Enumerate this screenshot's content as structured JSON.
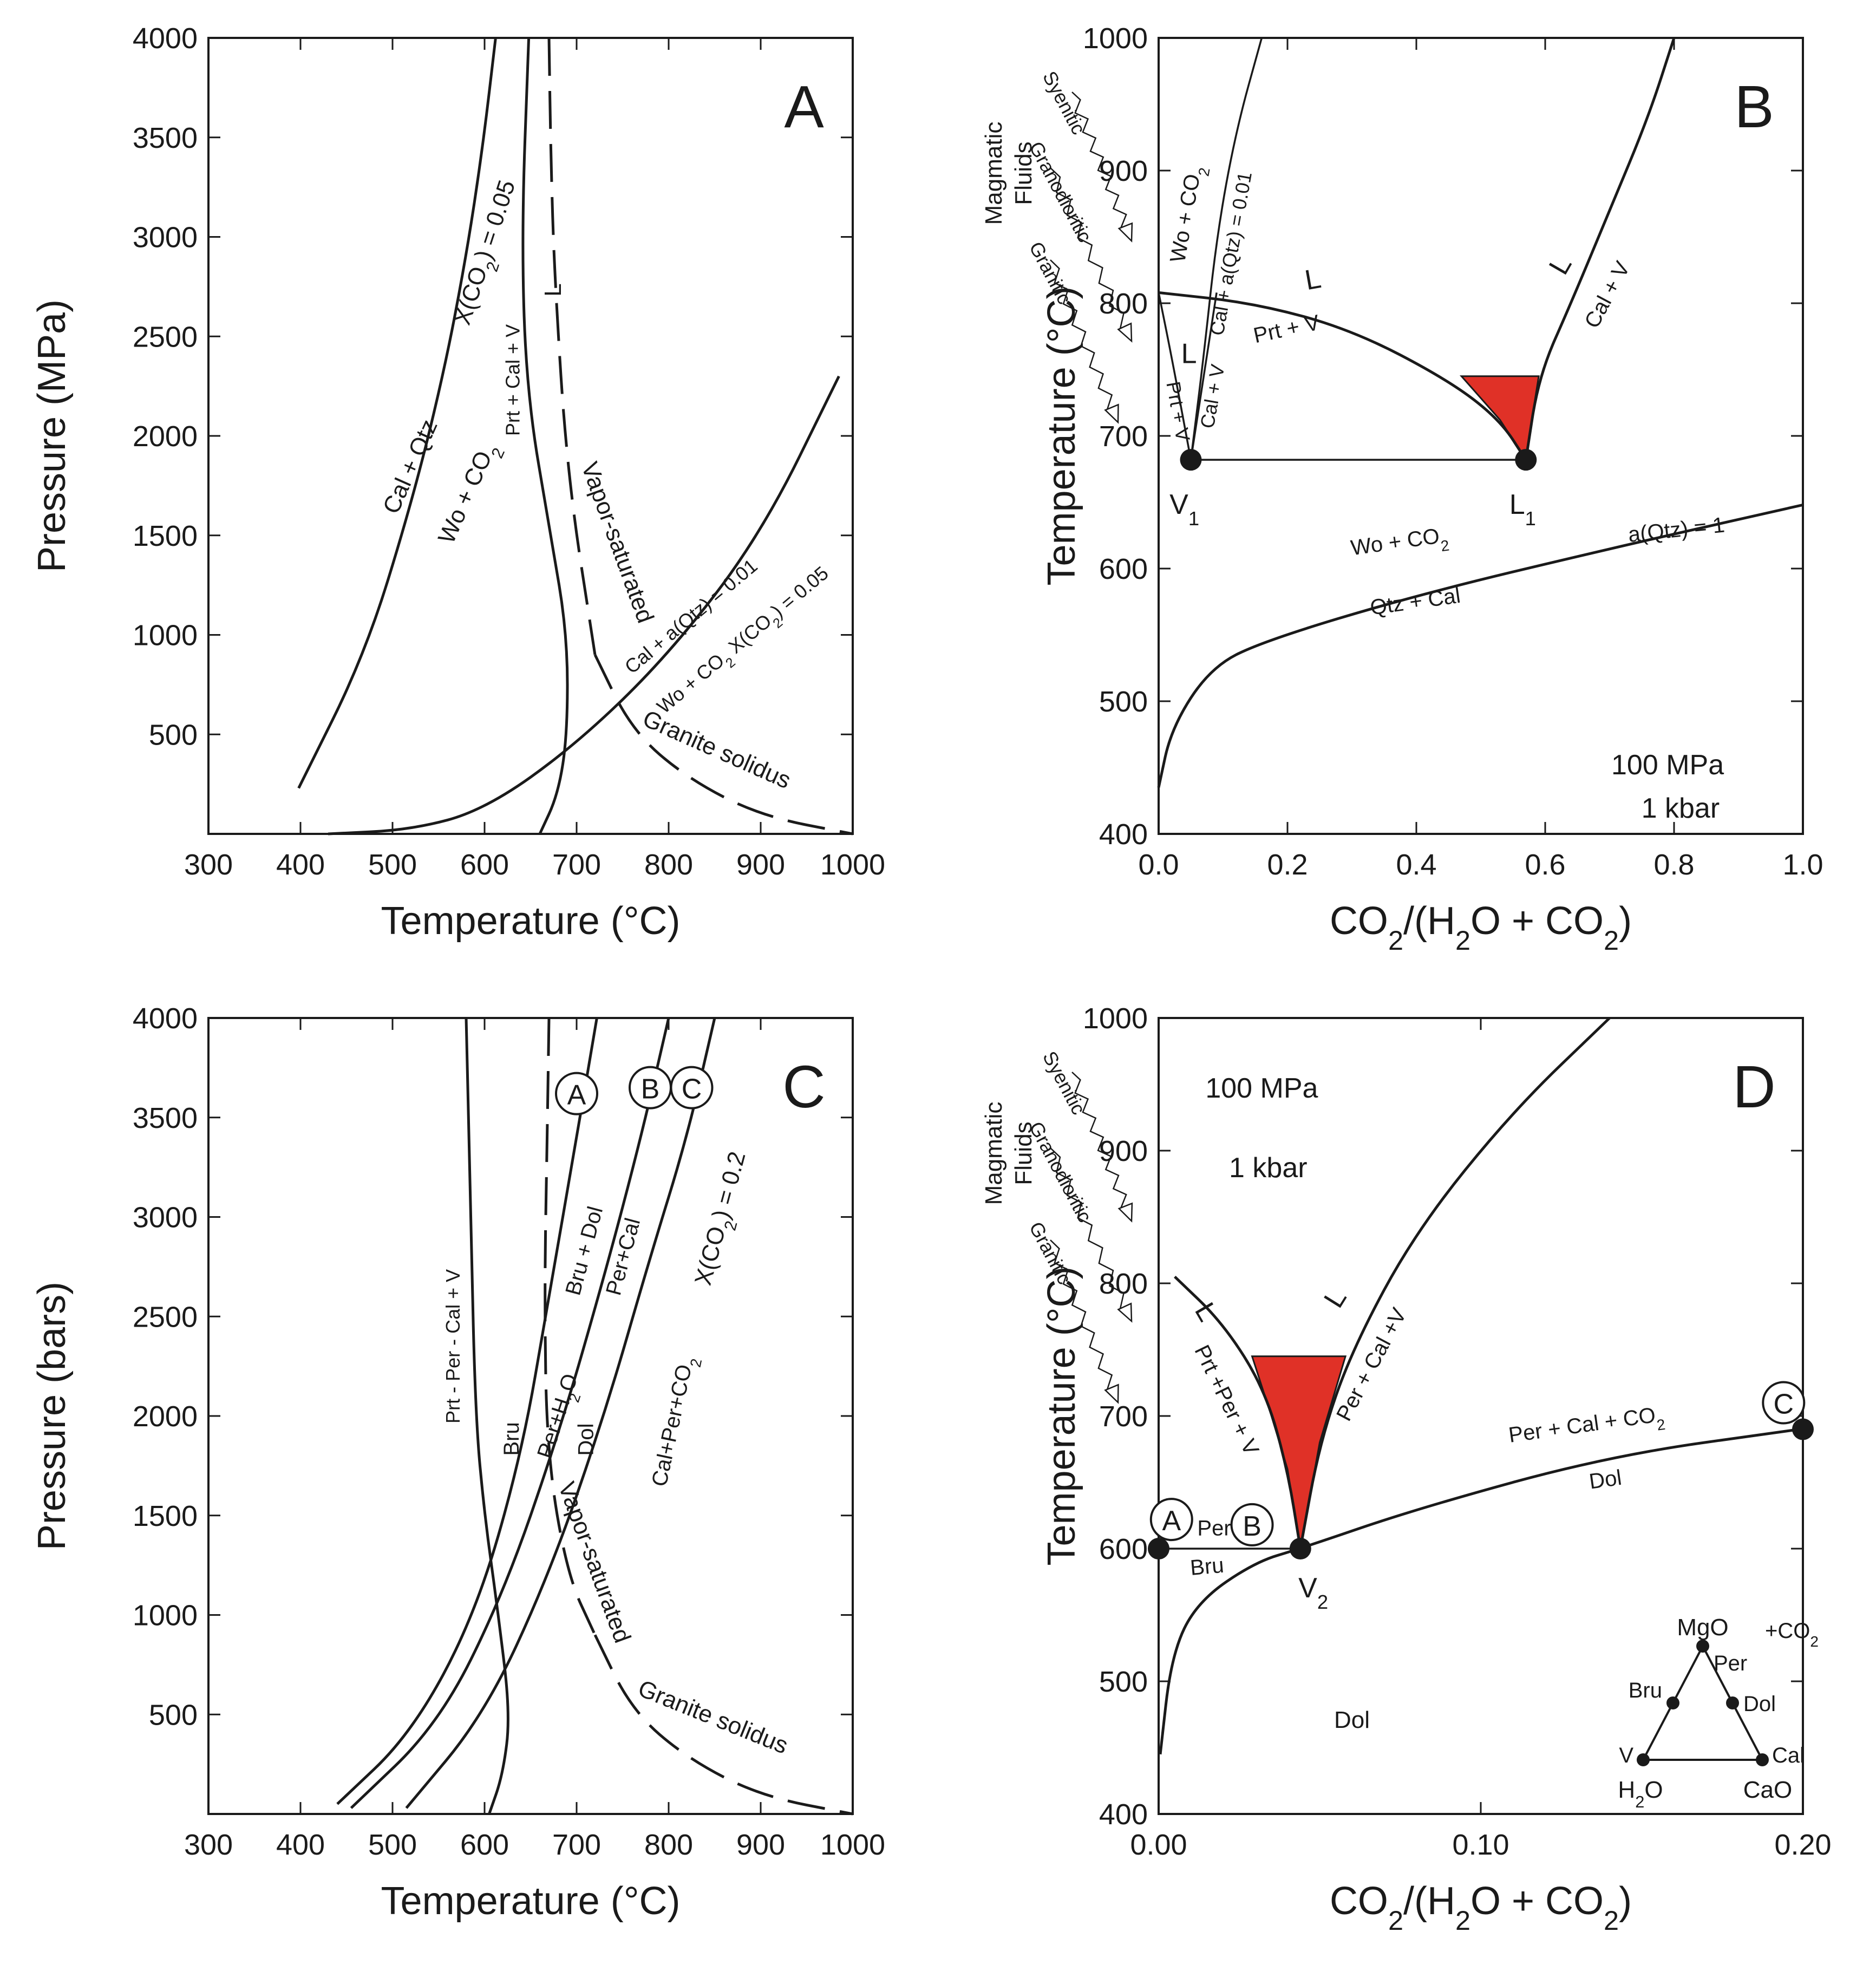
{
  "chart_data": [
    {
      "id": "A",
      "type": "line",
      "panel_label": "A",
      "xlabel": "Temperature (°C)",
      "ylabel": "Pressure (MPa)",
      "xlim": [
        300,
        1000
      ],
      "ylim": [
        0,
        4000
      ],
      "xticks": [
        "300",
        "400",
        "500",
        "600",
        "700",
        "800",
        "900",
        "1000"
      ],
      "yticks": [
        "500",
        "1000",
        "1500",
        "2000",
        "2500",
        "3000",
        "3500",
        "4000"
      ],
      "series": [
        {
          "name": "X(CO2) = 0.05",
          "style": "solid",
          "x": [
            398,
            470,
            520,
            555,
            580,
            598,
            612
          ],
          "y": [
            230,
            900,
            1650,
            2300,
            2900,
            3450,
            4000
          ]
        },
        {
          "name": "Prt + Cal + V",
          "style": "solid",
          "x": [
            648,
            640,
            646,
            672,
            690,
            690,
            680,
            660
          ],
          "y": [
            4000,
            3000,
            2200,
            1500,
            1000,
            500,
            200,
            0
          ]
        },
        {
          "name": "Wo + CO2 X(CO2) = 0.05",
          "style": "solid",
          "x": [
            430,
            520,
            600,
            700,
            800,
            900,
            985
          ],
          "y": [
            0,
            20,
            120,
            450,
            900,
            1500,
            2300
          ]
        },
        {
          "name": "Vapor-saturated L",
          "style": "dashed",
          "x": [
            670,
            672,
            676,
            690,
            720
          ],
          "y": [
            4000,
            3400,
            2800,
            1800,
            900
          ]
        },
        {
          "name": "Granite solidus",
          "style": "dashed",
          "x": [
            720,
            760,
            820,
            900,
            1000
          ],
          "y": [
            900,
            520,
            280,
            90,
            0
          ]
        }
      ],
      "annotations": {
        "cal_qtz": "Cal + Qtz",
        "wo_co2": "Wo + CO2",
        "xco2": "X(CO2) = 0.05",
        "prt_cal_v": "Prt + Cal + V",
        "liquid": "L",
        "vapor_saturated": "Vapor-saturated",
        "cal_aqtz": "Cal + a(Qtz) = 0.01",
        "wo_co2_xco2": "Wo + CO2 X(CO2) = 0.05",
        "granite_solidus": "Granite solidus"
      }
    },
    {
      "id": "B",
      "type": "line",
      "panel_label": "B",
      "xlabel": "CO2/(H2O + CO2)",
      "ylabel": "Temperature (°C)",
      "xlim": [
        0.0,
        1.0
      ],
      "ylim": [
        400,
        1000
      ],
      "xticks": [
        "0.0",
        "0.2",
        "0.4",
        "0.6",
        "0.8",
        "1.0"
      ],
      "yticks": [
        "400",
        "500",
        "600",
        "700",
        "800",
        "900",
        "1000"
      ],
      "side_label": [
        "Magmatic",
        "Fluids"
      ],
      "fluid_arrows": [
        "Syenitic",
        "Granodioritic",
        "Granitic"
      ],
      "series": [
        {
          "name": "Prt + V",
          "style": "solid",
          "x": [
            0.0,
            0.15,
            0.3,
            0.45,
            0.53,
            0.57
          ],
          "y": [
            808,
            800,
            780,
            742,
            712,
            682
          ]
        },
        {
          "name": "Cal + V",
          "style": "solid",
          "x": [
            0.57,
            0.59,
            0.64,
            0.7,
            0.76,
            0.8
          ],
          "y": [
            682,
            745,
            800,
            870,
            940,
            1000
          ]
        },
        {
          "name": "Wo + CO2 / Cal + a(Qtz) = 0.01",
          "style": "solid",
          "x": [
            0.05,
            0.07,
            0.09,
            0.12,
            0.16
          ],
          "y": [
            682,
            760,
            850,
            930,
            1000
          ]
        },
        {
          "name": "L Cal + V (left)",
          "style": "solid",
          "x": [
            0.05,
            0.07,
            0.09
          ],
          "y": [
            682,
            745,
            808
          ]
        },
        {
          "name": "Prt + V (left)",
          "style": "solid",
          "x": [
            0.0,
            0.02,
            0.05
          ],
          "y": [
            808,
            760,
            682
          ]
        },
        {
          "name": "V1-L1 tie line",
          "style": "solid",
          "x": [
            0.05,
            0.57
          ],
          "y": [
            682,
            682
          ]
        },
        {
          "name": "a(Qtz) = 1",
          "style": "solid",
          "x": [
            0.0,
            0.02,
            0.08,
            0.16,
            0.4,
            0.7,
            1.0
          ],
          "y": [
            435,
            480,
            525,
            545,
            580,
            615,
            648
          ]
        }
      ],
      "points": [
        {
          "name": "V1",
          "x": 0.05,
          "y": 682
        },
        {
          "name": "L1",
          "x": 0.57,
          "y": 682
        }
      ],
      "annotations": {
        "L_top": "L",
        "prt_v": "Prt + V",
        "L_right": "L",
        "cal_v_right": "Cal + V",
        "L_left": "L",
        "cal_v_left": "Cal + V",
        "prt_v_left": "Prt + V",
        "wo_co2": "Wo + CO2",
        "cal_aqtz": "Cal + a(Qtz) = 0.01",
        "wo_co2_low": "Wo + CO2",
        "qtz_cal": "Qtz + Cal",
        "aqtz1": "a(Qtz) = 1",
        "pressure_mpa": "100 MPa",
        "pressure_kbar": "1 kbar",
        "V1": "V1",
        "L1": "L1"
      }
    },
    {
      "id": "C",
      "type": "line",
      "panel_label": "C",
      "xlabel": "Temperature (°C)",
      "ylabel": "Pressure (bars)",
      "xlim": [
        300,
        1000
      ],
      "ylim": [
        0,
        4000
      ],
      "xticks": [
        "300",
        "400",
        "500",
        "600",
        "700",
        "800",
        "900",
        "1000"
      ],
      "yticks": [
        "500",
        "1000",
        "1500",
        "2000",
        "2500",
        "3000",
        "3500",
        "4000"
      ],
      "series": [
        {
          "name": "Prt - Per - Cal + V",
          "style": "solid",
          "x": [
            580,
            585,
            590,
            600,
            615,
            628,
            620,
            605
          ],
          "y": [
            4000,
            3000,
            2000,
            1500,
            1000,
            500,
            200,
            0
          ]
        },
        {
          "name": "A: Bru / Per+H2O",
          "style": "solid",
          "x": [
            440,
            520,
            590,
            640,
            670,
            700,
            722
          ],
          "y": [
            50,
            400,
            1000,
            1800,
            2600,
            3400,
            4000
          ]
        },
        {
          "name": "B: Bru + Dol / Per+Cal",
          "style": "solid",
          "x": [
            455,
            550,
            620,
            680,
            730,
            770,
            800
          ],
          "y": [
            30,
            450,
            1100,
            1900,
            2700,
            3400,
            4000
          ]
        },
        {
          "name": "C: Dol / Cal+Per+CO2 X(CO2)=0.2",
          "style": "solid",
          "x": [
            515,
            600,
            670,
            730,
            780,
            820,
            850
          ],
          "y": [
            30,
            500,
            1200,
            2000,
            2800,
            3400,
            4000
          ]
        },
        {
          "name": "Vapor-saturated",
          "style": "dashed",
          "x": [
            670,
            668,
            665,
            668,
            690,
            720
          ],
          "y": [
            4000,
            3400,
            2600,
            1800,
            1200,
            900
          ]
        },
        {
          "name": "Granite solidus",
          "style": "dashed",
          "x": [
            720,
            760,
            820,
            900,
            1000
          ],
          "y": [
            900,
            520,
            280,
            90,
            0
          ]
        }
      ],
      "circle_labels": [
        "A",
        "B",
        "C"
      ],
      "annotations": {
        "prt_per_cal_v": "Prt - Per - Cal + V",
        "bru": "Bru",
        "per_h2o": "Per+H2O",
        "bru_dol": "Bru + Dol",
        "per_cal": "Per+Cal",
        "dol": "Dol",
        "cal_per_co2": "Cal+Per+CO2",
        "xco2": "X(CO2) = 0.2",
        "vapor_saturated": "Vapor-saturated",
        "granite_solidus": "Granite solidus"
      }
    },
    {
      "id": "D",
      "type": "line",
      "panel_label": "D",
      "xlabel": "CO2/(H2O + CO2)",
      "ylabel": "Temperature (°C)",
      "xlim": [
        0.0,
        0.2
      ],
      "ylim": [
        400,
        1000
      ],
      "xticks": [
        "0.00",
        "0.10",
        "0.20"
      ],
      "yticks": [
        "400",
        "500",
        "600",
        "700",
        "800",
        "900",
        "1000"
      ],
      "side_label": [
        "Magmatic",
        "Fluids"
      ],
      "fluid_arrows": [
        "Syenitic",
        "Granodioritic",
        "Granitic"
      ],
      "series": [
        {
          "name": "Prt + Per + V",
          "style": "solid",
          "x": [
            0.005,
            0.02,
            0.033,
            0.04,
            0.044
          ],
          "y": [
            805,
            770,
            720,
            660,
            600
          ]
        },
        {
          "name": "Per + Cal + V",
          "style": "solid",
          "x": [
            0.044,
            0.05,
            0.06,
            0.08,
            0.11,
            0.14
          ],
          "y": [
            600,
            680,
            750,
            840,
            930,
            1000
          ]
        },
        {
          "name": "Per + Cal + CO2 / Dol",
          "style": "solid",
          "x": [
            0.0005,
            0.004,
            0.012,
            0.03,
            0.044,
            0.08,
            0.14,
            0.199
          ],
          "y": [
            445,
            520,
            560,
            590,
            600,
            630,
            670,
            690
          ]
        },
        {
          "name": "Per / Bru",
          "style": "solid",
          "x": [
            0.0,
            0.044
          ],
          "y": [
            600,
            600
          ]
        }
      ],
      "points": [
        {
          "name": "A",
          "x": 0.0,
          "y": 600
        },
        {
          "name": "V2",
          "x": 0.044,
          "y": 600
        },
        {
          "name": "C",
          "x": 0.2,
          "y": 690
        }
      ],
      "circle_labels": [
        "A",
        "B",
        "C"
      ],
      "annotations": {
        "pressure_mpa": "100 MPa",
        "pressure_kbar": "1 kbar",
        "L_left": "L",
        "prt_per_v": "Prt +Per + V",
        "L_right": "L",
        "per_cal_v": "Per + Cal +V",
        "per_cal_co2": "Per + Cal + CO2",
        "dol_upper": "Dol",
        "per": "Per",
        "bru": "Bru",
        "V2": "V2",
        "dol_lower": "Dol"
      },
      "inset": {
        "MgO": "MgO",
        "Per": "Per",
        "plus_co2": "+CO2",
        "Bru": "Bru",
        "Dol": "Dol",
        "V": "V",
        "H2O": "H2O",
        "Cal": "Cal",
        "CaO": "CaO"
      }
    }
  ]
}
